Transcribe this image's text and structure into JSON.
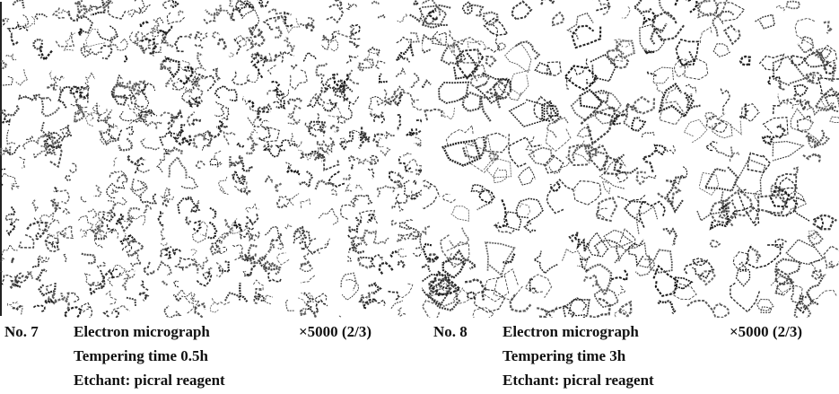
{
  "figures": [
    {
      "number": "No. 7",
      "title": "Electron micrograph",
      "magnification": "×5000 (2/3)",
      "details": [
        "Tempering time 0.5h",
        "Etchant: picral reagent"
      ]
    },
    {
      "number": "No. 8",
      "title": "Electron micrograph",
      "magnification": "×5000 (2/3)",
      "details": [
        "Tempering time 3h",
        "Etchant: picral reagent"
      ]
    }
  ]
}
